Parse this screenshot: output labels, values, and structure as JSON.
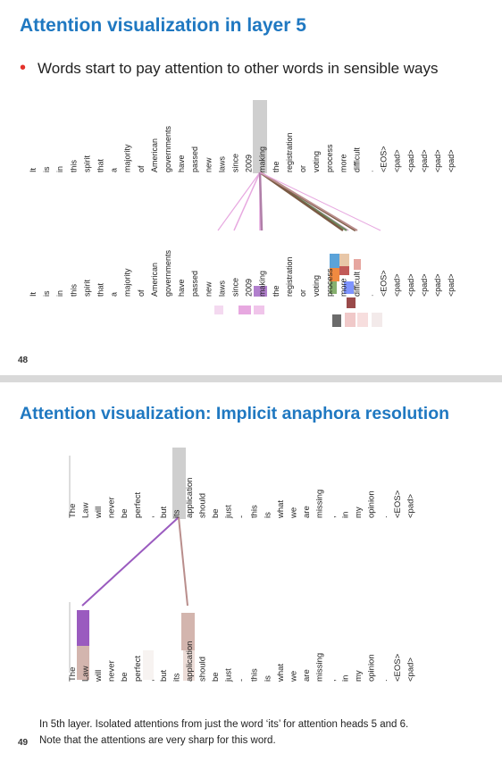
{
  "slide48": {
    "title": "Attention visualization in layer 5",
    "bullet": "Words start to pay attention to other words in sensible ways",
    "page_number": "48",
    "tokens": [
      "It",
      "is",
      "in",
      "this",
      "spirit",
      "that",
      "a",
      "majority",
      "of",
      "American",
      "governments",
      "have",
      "passed",
      "new",
      "laws",
      "since",
      "2009",
      "making",
      "the",
      "registration",
      "or",
      "voting",
      "process",
      "more",
      "difficult",
      ".",
      "<EOS>",
      "<pad>",
      "<pad>",
      "<pad>",
      "<pad>",
      "<pad>"
    ],
    "query_word": "making",
    "attention_targets": [
      "more",
      "difficult",
      "making",
      "2009",
      "since"
    ]
  },
  "slide49": {
    "title": "Attention visualization: Implicit anaphora resolution",
    "page_number": "49",
    "tokens": [
      "The",
      "Law",
      "will",
      "never",
      "be",
      "perfect",
      ",",
      "but",
      "its",
      "application",
      "should",
      "be",
      "just",
      "-",
      "this",
      "is",
      "what",
      "we",
      "are",
      "missing",
      ",",
      "in",
      "my",
      "opinion",
      ".",
      "<EOS>",
      "<pad>"
    ],
    "query_word": "its",
    "attention_targets": [
      "Law",
      "application"
    ],
    "caption_line1": "In 5th layer. Isolated attentions from just the word ‘its’ for attention heads 5 and 6.",
    "caption_line2": "Note that the attentions are very sharp for this word."
  },
  "colors": {
    "title_blue": "#1f78c1",
    "bullet_red": "#e4322b",
    "highlight_grey": "#cfcfcf",
    "head_brown": "#7a5a44",
    "head_green": "#6a8a5a",
    "head_pink": "#e7a8e0",
    "head_purple": "#9a5bbf",
    "head_rose": "#b98e8c"
  }
}
